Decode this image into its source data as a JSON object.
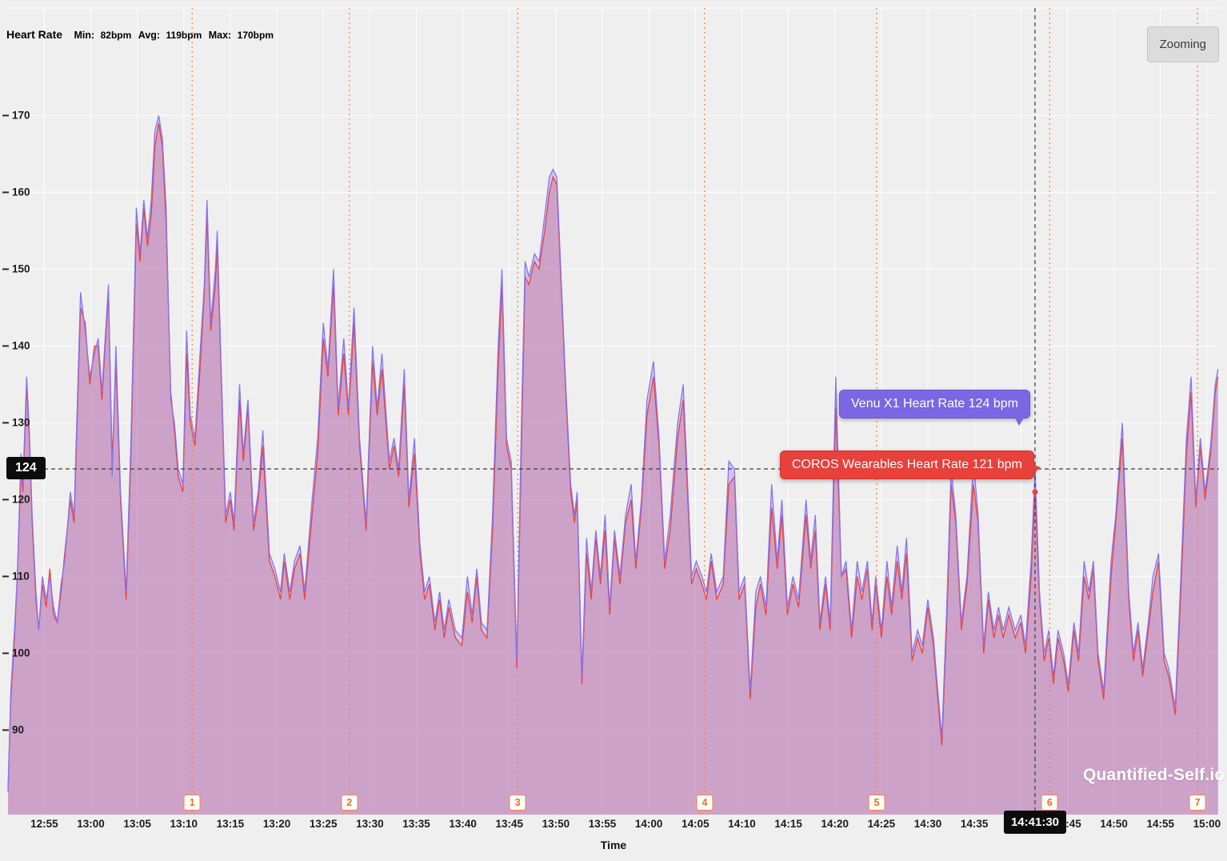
{
  "header": {
    "title": "Heart Rate",
    "stats": [
      {
        "label": "Min:",
        "value": "82bpm"
      },
      {
        "label": "Avg:",
        "value": "119bpm"
      },
      {
        "label": "Max:",
        "value": "170bpm"
      }
    ],
    "zoom_button": "Zooming"
  },
  "watermark": "Quantified-Self.io",
  "crosshair": {
    "t": 111.52,
    "value": 124,
    "value_label": "124",
    "time_label": "14:41:30",
    "series_values": [
      124,
      121
    ]
  },
  "tooltips": [
    {
      "series": "Venu X1",
      "text": "Venu X1 Heart Rate 124 bpm",
      "color": "#7b66e3"
    },
    {
      "series": "COROS Wearables",
      "text": "COROS Wearables Heart Rate 121 bpm",
      "color": "#e8403a"
    }
  ],
  "chart_data": {
    "type": "area",
    "title": "Heart Rate",
    "xlabel": "Time",
    "ylabel": "",
    "x_unit": "minutes after 12:50",
    "xlim": [
      1.1,
      131.3
    ],
    "ylim": [
      79,
      184
    ],
    "grid": true,
    "y_ticks": [
      90,
      100,
      110,
      120,
      130,
      140,
      150,
      160,
      170
    ],
    "x_ticks": [
      {
        "t": 5,
        "label": "12:55"
      },
      {
        "t": 10,
        "label": "13:00"
      },
      {
        "t": 15,
        "label": "13:05"
      },
      {
        "t": 20,
        "label": "13:10"
      },
      {
        "t": 25,
        "label": "13:15"
      },
      {
        "t": 30,
        "label": "13:20"
      },
      {
        "t": 35,
        "label": "13:25"
      },
      {
        "t": 40,
        "label": "13:30"
      },
      {
        "t": 45,
        "label": "13:35"
      },
      {
        "t": 50,
        "label": "13:40"
      },
      {
        "t": 55,
        "label": "13:45"
      },
      {
        "t": 60,
        "label": "13:50"
      },
      {
        "t": 65,
        "label": "13:55"
      },
      {
        "t": 70,
        "label": "14:00"
      },
      {
        "t": 75,
        "label": "14:05"
      },
      {
        "t": 80,
        "label": "14:10"
      },
      {
        "t": 85,
        "label": "14:15"
      },
      {
        "t": 90,
        "label": "14:20"
      },
      {
        "t": 95,
        "label": "14:25"
      },
      {
        "t": 100,
        "label": "14:30"
      },
      {
        "t": 105,
        "label": "14:35"
      },
      {
        "t": 110,
        "label": "14:40"
      },
      {
        "t": 115,
        "label": "14:45"
      },
      {
        "t": 120,
        "label": "14:50"
      },
      {
        "t": 125,
        "label": "14:55"
      },
      {
        "t": 130,
        "label": "15:00"
      }
    ],
    "series": [
      {
        "name": "Venu X1",
        "color": "#8673f2"
      },
      {
        "name": "COROS Wearables",
        "color": "#e8433a"
      }
    ],
    "lap_markers": [
      {
        "n": "1",
        "t": 20.9
      },
      {
        "n": "2",
        "t": 37.8
      },
      {
        "n": "3",
        "t": 55.9
      },
      {
        "n": "4",
        "t": 76.0
      },
      {
        "n": "5",
        "t": 94.5
      },
      {
        "n": "6",
        "t": 113.1
      },
      {
        "n": "7",
        "t": 129.0
      }
    ],
    "points": [
      [
        1.1,
        82,
        82
      ],
      [
        1.4,
        95,
        94
      ],
      [
        1.8,
        103,
        102
      ],
      [
        2.1,
        110,
        110
      ],
      [
        2.5,
        126,
        124
      ],
      [
        2.7,
        122,
        121
      ],
      [
        3.1,
        136,
        135
      ],
      [
        3.4,
        129,
        128
      ],
      [
        3.7,
        118,
        117
      ],
      [
        4.1,
        108,
        107
      ],
      [
        4.4,
        103,
        103
      ],
      [
        4.8,
        110,
        109
      ],
      [
        5.2,
        107,
        106
      ],
      [
        5.6,
        110,
        111
      ],
      [
        6.0,
        106,
        105
      ],
      [
        6.4,
        104,
        104
      ],
      [
        6.8,
        109,
        108
      ],
      [
        7.2,
        112,
        113
      ],
      [
        7.8,
        121,
        120
      ],
      [
        8.2,
        118,
        117
      ],
      [
        8.9,
        147,
        145
      ],
      [
        9.4,
        142,
        143
      ],
      [
        9.9,
        136,
        135
      ],
      [
        10.4,
        139,
        140
      ],
      [
        10.8,
        141,
        140
      ],
      [
        11.2,
        134,
        133
      ],
      [
        11.9,
        148,
        147
      ],
      [
        12.3,
        123,
        125
      ],
      [
        12.7,
        140,
        138
      ],
      [
        13.2,
        121,
        120
      ],
      [
        13.8,
        108,
        107
      ],
      [
        14.3,
        127,
        125
      ],
      [
        14.9,
        158,
        156
      ],
      [
        15.3,
        152,
        151
      ],
      [
        15.7,
        159,
        158
      ],
      [
        16.1,
        154,
        153
      ],
      [
        16.5,
        159,
        157
      ],
      [
        16.9,
        168,
        166
      ],
      [
        17.3,
        170,
        169
      ],
      [
        17.7,
        167,
        166
      ],
      [
        18.1,
        158,
        156
      ],
      [
        18.6,
        133,
        134
      ],
      [
        19.0,
        130,
        129
      ],
      [
        19.4,
        124,
        123
      ],
      [
        19.9,
        122,
        121
      ],
      [
        20.3,
        142,
        139
      ],
      [
        20.7,
        131,
        130
      ],
      [
        21.2,
        128,
        127
      ],
      [
        21.7,
        138,
        136
      ],
      [
        22.2,
        148,
        147
      ],
      [
        22.5,
        159,
        157
      ],
      [
        22.9,
        143,
        142
      ],
      [
        23.4,
        150,
        148
      ],
      [
        23.6,
        155,
        153
      ],
      [
        24.0,
        138,
        137
      ],
      [
        24.5,
        118,
        117
      ],
      [
        25.0,
        121,
        120
      ],
      [
        25.4,
        117,
        116
      ],
      [
        26.0,
        135,
        133
      ],
      [
        26.4,
        126,
        125
      ],
      [
        26.9,
        133,
        132
      ],
      [
        27.5,
        117,
        116
      ],
      [
        28.0,
        121,
        120
      ],
      [
        28.5,
        129,
        127
      ],
      [
        29.2,
        113,
        112
      ],
      [
        29.8,
        111,
        110
      ],
      [
        30.4,
        108,
        107
      ],
      [
        30.8,
        113,
        112
      ],
      [
        31.4,
        108,
        107
      ],
      [
        31.9,
        112,
        111
      ],
      [
        32.5,
        114,
        113
      ],
      [
        33.0,
        108,
        107
      ],
      [
        33.8,
        120,
        118
      ],
      [
        34.4,
        128,
        126
      ],
      [
        35.0,
        143,
        141
      ],
      [
        35.5,
        137,
        136
      ],
      [
        36.1,
        150,
        148
      ],
      [
        36.6,
        132,
        131
      ],
      [
        37.2,
        141,
        139
      ],
      [
        37.7,
        132,
        131
      ],
      [
        38.3,
        145,
        143
      ],
      [
        38.9,
        128,
        127
      ],
      [
        39.6,
        117,
        116
      ],
      [
        40.3,
        140,
        138
      ],
      [
        40.8,
        132,
        131
      ],
      [
        41.3,
        139,
        137
      ],
      [
        42.1,
        125,
        124
      ],
      [
        42.6,
        128,
        127
      ],
      [
        43.1,
        124,
        123
      ],
      [
        43.7,
        137,
        135
      ],
      [
        44.2,
        120,
        119
      ],
      [
        44.8,
        128,
        126
      ],
      [
        45.4,
        114,
        113
      ],
      [
        45.9,
        108,
        107
      ],
      [
        46.4,
        110,
        109
      ],
      [
        47.0,
        104,
        103
      ],
      [
        47.5,
        108,
        107
      ],
      [
        48.0,
        103,
        102
      ],
      [
        48.5,
        107,
        106
      ],
      [
        49.2,
        103,
        102
      ],
      [
        49.9,
        102,
        101
      ],
      [
        50.5,
        110,
        108
      ],
      [
        51.0,
        105,
        104
      ],
      [
        51.5,
        111,
        110
      ],
      [
        52.0,
        104,
        103
      ],
      [
        52.6,
        103,
        102
      ],
      [
        53.2,
        118,
        116
      ],
      [
        53.8,
        140,
        137
      ],
      [
        54.2,
        150,
        148
      ],
      [
        54.7,
        128,
        127
      ],
      [
        55.2,
        125,
        124
      ],
      [
        55.8,
        99,
        98
      ],
      [
        56.3,
        130,
        127
      ],
      [
        56.7,
        151,
        149
      ],
      [
        57.1,
        149,
        148
      ],
      [
        57.7,
        152,
        151
      ],
      [
        58.2,
        151,
        150
      ],
      [
        58.8,
        157,
        155
      ],
      [
        59.3,
        162,
        160
      ],
      [
        59.7,
        163,
        162
      ],
      [
        60.1,
        162,
        161
      ],
      [
        60.6,
        148,
        147
      ],
      [
        61.1,
        134,
        133
      ],
      [
        61.6,
        122,
        121
      ],
      [
        62.0,
        118,
        117
      ],
      [
        62.3,
        121,
        120
      ],
      [
        62.8,
        97,
        96
      ],
      [
        63.3,
        115,
        113
      ],
      [
        63.8,
        108,
        107
      ],
      [
        64.3,
        116,
        115
      ],
      [
        64.8,
        110,
        109
      ],
      [
        65.3,
        118,
        116
      ],
      [
        65.8,
        106,
        105
      ],
      [
        66.3,
        116,
        115
      ],
      [
        66.9,
        110,
        109
      ],
      [
        67.5,
        118,
        117
      ],
      [
        68.1,
        122,
        120
      ],
      [
        68.6,
        112,
        111
      ],
      [
        69.2,
        120,
        119
      ],
      [
        69.8,
        133,
        131
      ],
      [
        70.5,
        138,
        136
      ],
      [
        71.1,
        128,
        127
      ],
      [
        71.7,
        112,
        111
      ],
      [
        72.3,
        118,
        116
      ],
      [
        73.1,
        130,
        128
      ],
      [
        73.7,
        135,
        133
      ],
      [
        74.6,
        110,
        109
      ],
      [
        75.1,
        112,
        111
      ],
      [
        75.7,
        110,
        109
      ],
      [
        76.2,
        108,
        107
      ],
      [
        76.7,
        113,
        112
      ],
      [
        77.3,
        108,
        107
      ],
      [
        78.0,
        110,
        109
      ],
      [
        78.6,
        125,
        122
      ],
      [
        79.2,
        124,
        123
      ],
      [
        79.7,
        108,
        107
      ],
      [
        80.3,
        110,
        109
      ],
      [
        80.9,
        95,
        94
      ],
      [
        81.5,
        108,
        106
      ],
      [
        82.0,
        110,
        109
      ],
      [
        82.6,
        106,
        105
      ],
      [
        83.2,
        122,
        119
      ],
      [
        83.8,
        112,
        111
      ],
      [
        84.3,
        120,
        118
      ],
      [
        84.9,
        106,
        105
      ],
      [
        85.5,
        110,
        109
      ],
      [
        86.1,
        107,
        106
      ],
      [
        86.9,
        120,
        118
      ],
      [
        87.4,
        112,
        111
      ],
      [
        87.9,
        118,
        116
      ],
      [
        88.4,
        104,
        103
      ],
      [
        89.0,
        110,
        109
      ],
      [
        89.5,
        104,
        103
      ],
      [
        90.1,
        136,
        132
      ],
      [
        90.7,
        110,
        110
      ],
      [
        91.2,
        112,
        111
      ],
      [
        91.8,
        103,
        102
      ],
      [
        92.4,
        112,
        110
      ],
      [
        92.9,
        108,
        107
      ],
      [
        93.5,
        112,
        111
      ],
      [
        94.0,
        104,
        103
      ],
      [
        94.4,
        110,
        109
      ],
      [
        95.0,
        103,
        102
      ],
      [
        95.6,
        112,
        110
      ],
      [
        96.1,
        106,
        105
      ],
      [
        96.7,
        114,
        112
      ],
      [
        97.2,
        108,
        107
      ],
      [
        97.7,
        115,
        113
      ],
      [
        98.3,
        100,
        99
      ],
      [
        98.9,
        103,
        102
      ],
      [
        99.4,
        101,
        100
      ],
      [
        100.0,
        107,
        106
      ],
      [
        100.6,
        102,
        101
      ],
      [
        101.0,
        96,
        95
      ],
      [
        101.5,
        89,
        88
      ],
      [
        102.0,
        105,
        103
      ],
      [
        102.5,
        124,
        122
      ],
      [
        103.0,
        118,
        117
      ],
      [
        103.6,
        104,
        103
      ],
      [
        104.2,
        110,
        109
      ],
      [
        104.9,
        125,
        122
      ],
      [
        105.4,
        118,
        117
      ],
      [
        106.0,
        101,
        100
      ],
      [
        106.5,
        108,
        107
      ],
      [
        107.1,
        103,
        102
      ],
      [
        107.6,
        106,
        105
      ],
      [
        108.1,
        103,
        102
      ],
      [
        108.7,
        106,
        105
      ],
      [
        109.4,
        103,
        102
      ],
      [
        110.0,
        105,
        104
      ],
      [
        110.5,
        101,
        100
      ],
      [
        111.1,
        112,
        110
      ],
      [
        111.52,
        124,
        121
      ],
      [
        112.0,
        108,
        107
      ],
      [
        112.5,
        100,
        99
      ],
      [
        113.0,
        103,
        102
      ],
      [
        113.5,
        97,
        96
      ],
      [
        114.0,
        103,
        102
      ],
      [
        114.6,
        100,
        99
      ],
      [
        115.1,
        96,
        95
      ],
      [
        115.7,
        104,
        103
      ],
      [
        116.2,
        100,
        99
      ],
      [
        116.8,
        112,
        110
      ],
      [
        117.3,
        108,
        107
      ],
      [
        117.8,
        112,
        111
      ],
      [
        118.3,
        100,
        99
      ],
      [
        118.9,
        95,
        94
      ],
      [
        119.7,
        112,
        110
      ],
      [
        120.2,
        118,
        117
      ],
      [
        120.9,
        130,
        128
      ],
      [
        121.6,
        108,
        107
      ],
      [
        122.1,
        100,
        99
      ],
      [
        122.6,
        104,
        103
      ],
      [
        123.1,
        98,
        97
      ],
      [
        123.7,
        104,
        103
      ],
      [
        124.2,
        110,
        108
      ],
      [
        124.8,
        113,
        112
      ],
      [
        125.4,
        100,
        99
      ],
      [
        125.9,
        98,
        97
      ],
      [
        126.6,
        93,
        92
      ],
      [
        127.2,
        110,
        108
      ],
      [
        127.8,
        128,
        126
      ],
      [
        128.3,
        136,
        134
      ],
      [
        128.8,
        120,
        119
      ],
      [
        129.3,
        128,
        127
      ],
      [
        129.8,
        121,
        120
      ],
      [
        130.4,
        127,
        126
      ],
      [
        130.9,
        135,
        134
      ],
      [
        131.2,
        137,
        136
      ]
    ]
  }
}
